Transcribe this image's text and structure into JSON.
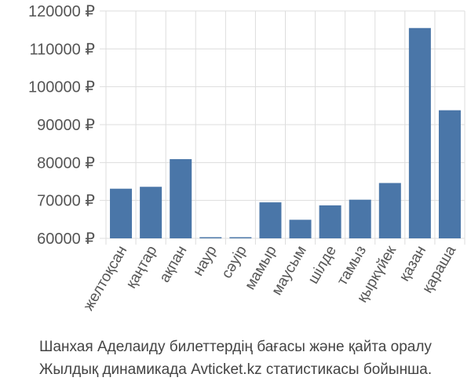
{
  "chart_data": {
    "type": "bar",
    "categories": [
      "желтоқсан",
      "қаңтар",
      "ақпан",
      "наур",
      "сәуір",
      "мамыр",
      "маусым",
      "шілде",
      "тамыз",
      "қыркүйек",
      "қазан",
      "қараша"
    ],
    "values": [
      73100,
      73600,
      80900,
      60300,
      60300,
      69500,
      64900,
      68700,
      70200,
      74600,
      115500,
      93800
    ],
    "ylim": [
      60000,
      120000
    ],
    "yticks": [
      60000,
      70000,
      80000,
      90000,
      100000,
      110000,
      120000
    ],
    "ytick_labels": [
      "60000 ₽",
      "70000 ₽",
      "80000 ₽",
      "90000 ₽",
      "100000 ₽",
      "110000 ₽",
      "120000 ₽"
    ],
    "bar_color": "#4a76a8",
    "grid": true
  },
  "caption": {
    "line1": "Шанхая Аделаиду билеттердің бағасы және қайта оралу",
    "line2": "Жылдық динамикада Avticket.kz статистикасы бойынша."
  }
}
